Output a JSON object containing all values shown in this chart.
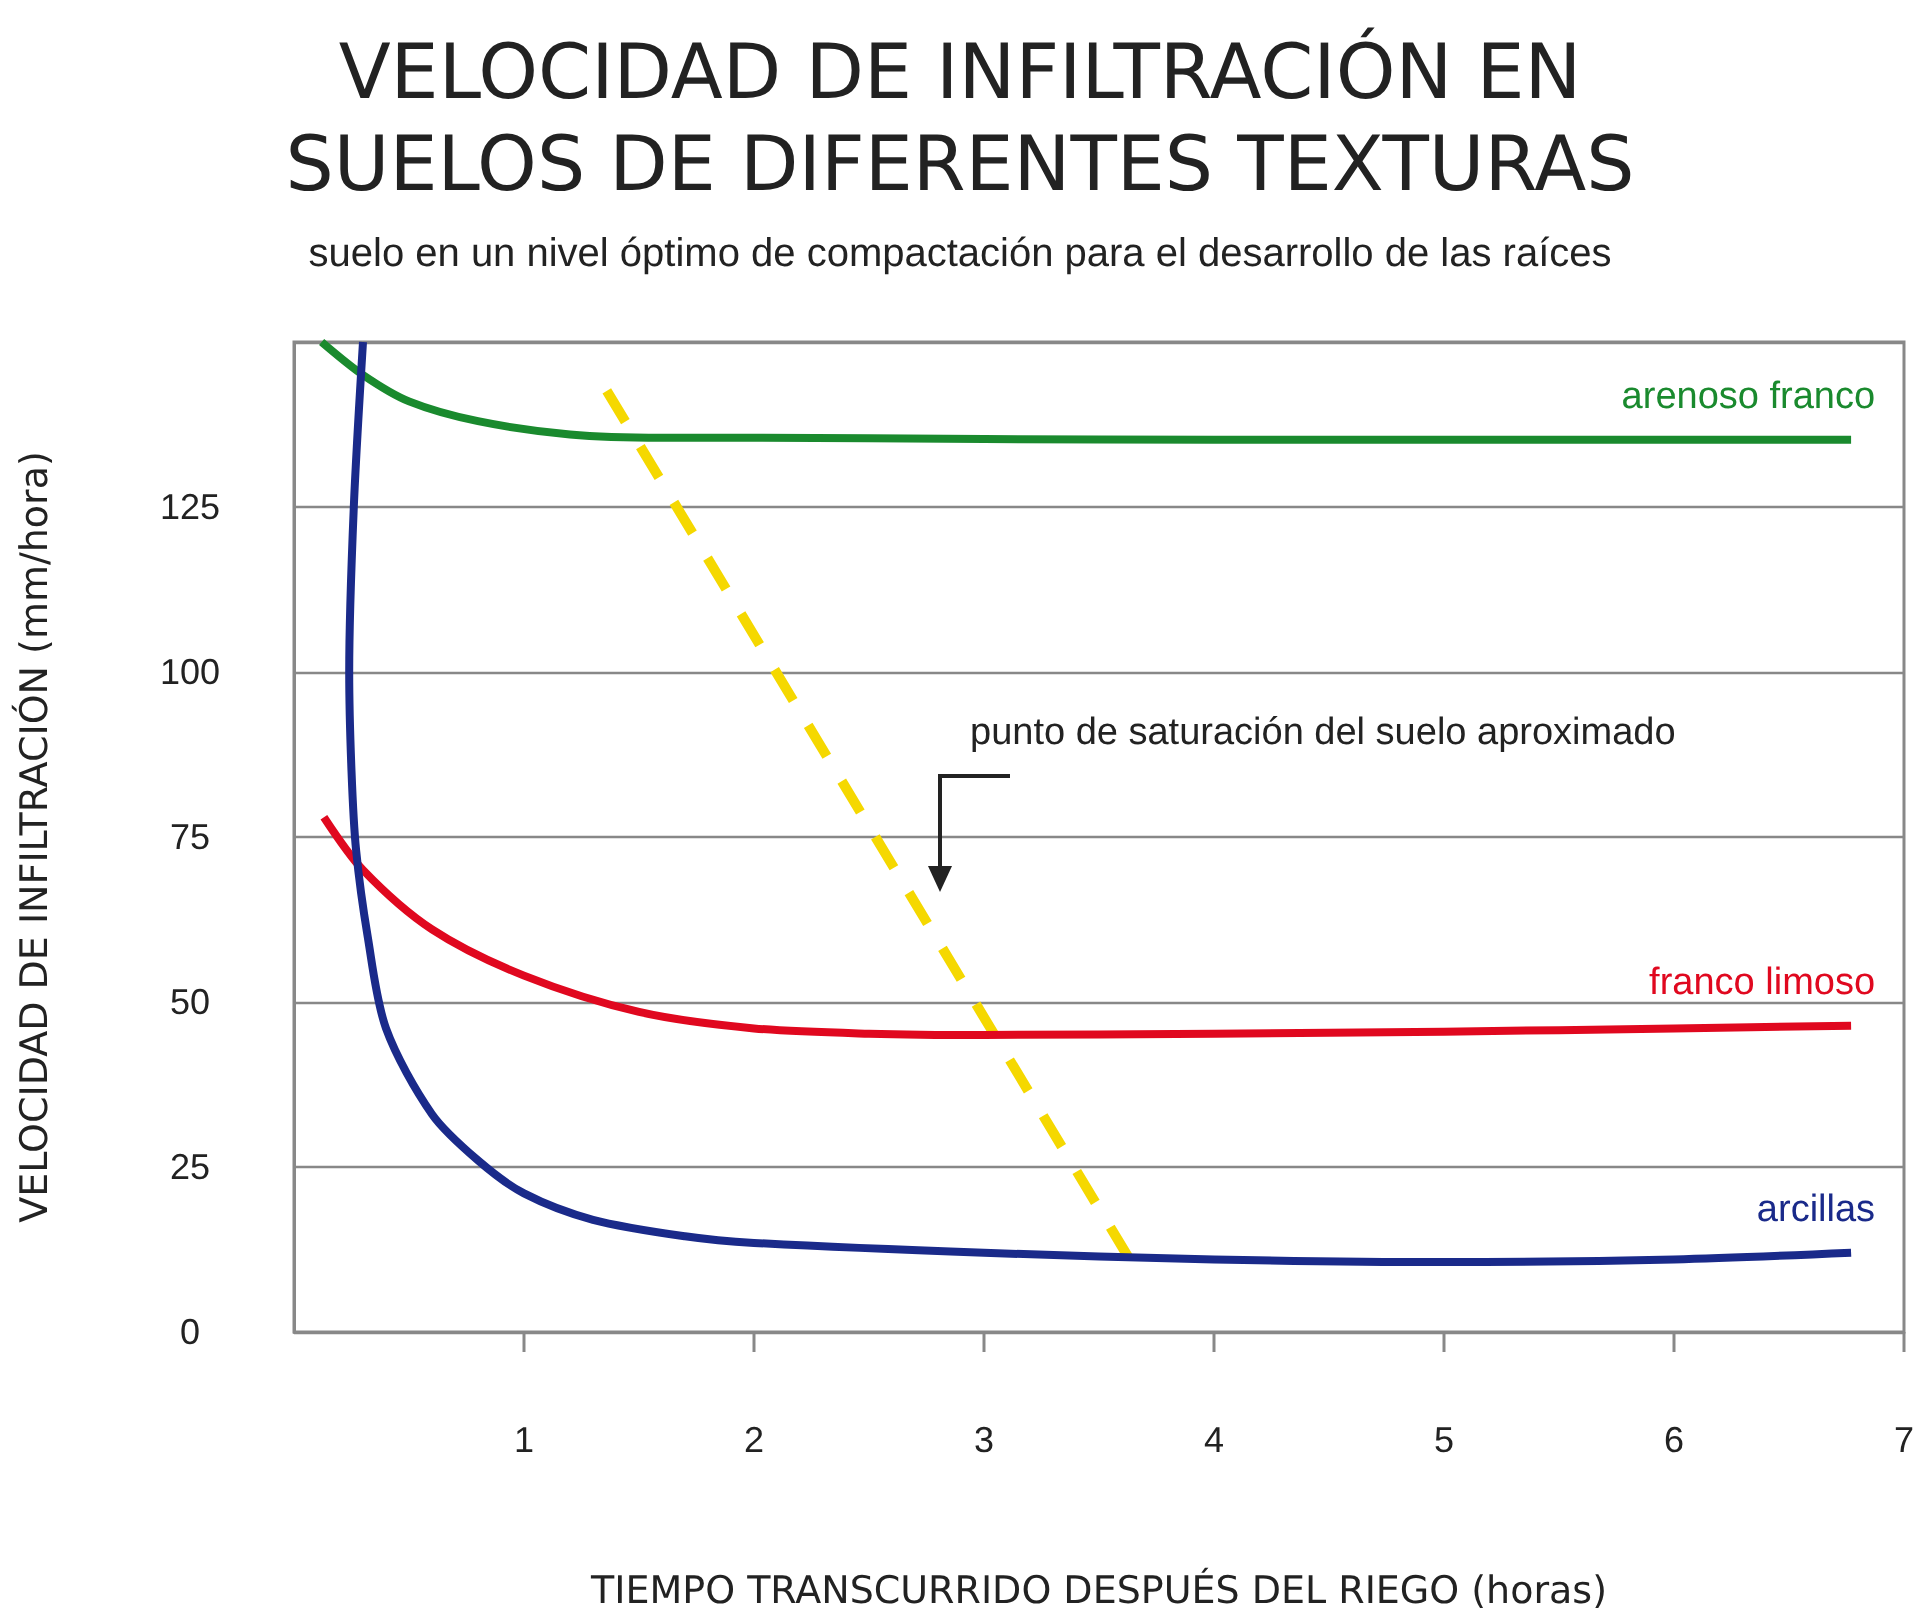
{
  "chart_data": {
    "type": "line",
    "title": "VELOCIDAD DE INFILTRACIÓN EN\nSUELOS DE DIFERENTES TEXTURAS",
    "subtitle": "suelo en un nivel óptimo de compactación para el desarrollo de las raíces",
    "xlabel": "TIEMPO TRANSCURRIDO DESPUÉS DEL RIEGO (horas)",
    "ylabel": "VELOCIDAD DE INFILTRACIÓN (mm/hora)",
    "xlim": [
      0,
      7
    ],
    "xticks": [
      1,
      2,
      3,
      4,
      5,
      6,
      7
    ],
    "ylim": [
      0,
      150
    ],
    "yticks": [
      0,
      25,
      50,
      75,
      100,
      125,
      {
        "value": 150,
        "label": null
      }
    ],
    "grid": "y",
    "legend": false,
    "marker": "none",
    "annotations": [
      "punto de saturación del suelo aproximado"
    ],
    "series": [
      {
        "name": "arenoso franco",
        "color": "#1a8a2e",
        "x": [
          0.12,
          0.3,
          0.5,
          0.8,
          1.2,
          1.6,
          2,
          3,
          4,
          5,
          6,
          6.77
        ],
        "values": [
          150,
          145,
          141,
          138,
          136,
          135.5,
          135.5,
          135.3,
          135.2,
          135.2,
          135.2,
          135.2
        ]
      },
      {
        "name": "franco limoso",
        "color": "#e0081f",
        "x": [
          0.13,
          0.3,
          0.6,
          1,
          1.5,
          2,
          2.5,
          3,
          4,
          5,
          6,
          6.77
        ],
        "values": [
          78,
          70,
          61,
          54,
          48.5,
          46,
          45.2,
          45,
          45.2,
          45.5,
          46,
          46.4
        ]
      },
      {
        "name": "arcillas",
        "color": "#1a2a8a",
        "x": [
          0.3,
          0.26,
          0.24,
          0.25,
          0.27,
          0.32,
          0.4,
          0.6,
          0.8,
          1,
          1.3,
          1.7,
          2,
          3,
          4,
          5,
          6,
          6.77
        ],
        "values": [
          150,
          125,
          100,
          85,
          73,
          60,
          46,
          33,
          26,
          21,
          17,
          14.5,
          13.5,
          12,
          11,
          10.6,
          11,
          12
        ]
      },
      {
        "type": "line",
        "color": "#f5d800",
        "line_style": "dashed",
        "x": [
          1.36,
          3.63
        ],
        "values": [
          142.6,
          11.2
        ]
      }
    ]
  }
}
